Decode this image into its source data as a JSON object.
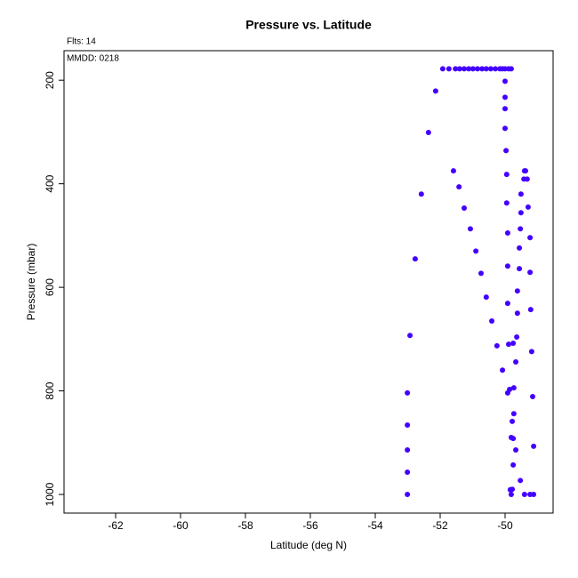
{
  "chart_data": {
    "type": "scatter",
    "title": "Pressure vs. Latitude",
    "note_flights": "Flts: 14",
    "note_date": "MMDD: 0218",
    "x_label": "Latitude (deg N)",
    "y_label": "Pressure (mbar)",
    "color": "#4400ff",
    "xlim": [
      -63.59,
      -48.52
    ],
    "ylim": [
      1036,
      143
    ],
    "xticks": [
      -62,
      -60,
      -58,
      -56,
      -54,
      -52,
      -50
    ],
    "yticks": [
      200,
      400,
      600,
      800,
      1000
    ],
    "x": [
      -51.92,
      -51.73,
      -51.53,
      -51.4,
      -51.26,
      -51.12,
      -50.99,
      -50.85,
      -50.71,
      -50.58,
      -50.44,
      -50.3,
      -50.16,
      -50.08,
      -50.0,
      -49.89,
      -49.81,
      -52.14,
      -52.36,
      -52.58,
      -52.77,
      -52.93,
      -53.01,
      -53.01,
      -53.01,
      -53.01,
      -53.01,
      -51.59,
      -51.42,
      -51.26,
      -51.07,
      -50.9,
      -50.74,
      -50.58,
      -50.41,
      -50.25,
      -50.08,
      -50.0,
      -50.0,
      -50.0,
      -50.0,
      -49.97,
      -49.95,
      -49.95,
      -49.92,
      -49.92,
      -49.92,
      -49.89,
      -49.92,
      -49.86,
      -49.4,
      -49.37,
      -49.42,
      -49.32,
      -49.51,
      -49.29,
      -49.51,
      -49.53,
      -49.23,
      -49.56,
      -49.23,
      -49.56,
      -49.62,
      -49.21,
      -49.62,
      -49.64,
      -49.75,
      -49.18,
      -49.67,
      -49.73,
      -49.15,
      -49.73,
      -49.78,
      -49.81,
      -49.75,
      -49.67,
      -49.12,
      -49.75,
      -49.53,
      -49.84,
      -49.81,
      -49.4,
      -49.23,
      -49.12,
      -49.78
    ],
    "values": [
      178,
      178,
      178,
      178,
      178,
      178,
      178,
      178,
      178,
      178,
      178,
      178,
      178,
      178,
      178,
      178,
      178,
      221,
      301,
      420,
      545,
      693,
      804,
      866,
      914,
      957,
      1000,
      375,
      406,
      447,
      487,
      530,
      573,
      619,
      665,
      713,
      760,
      202,
      233,
      255,
      293,
      336,
      382,
      437,
      495,
      559,
      631,
      710,
      804,
      797,
      375,
      375,
      391,
      391,
      420,
      445,
      456,
      487,
      504,
      524,
      571,
      564,
      607,
      643,
      650,
      696,
      708,
      724,
      744,
      794,
      811,
      844,
      859,
      890,
      892,
      914,
      907,
      943,
      973,
      991,
      1000,
      1000,
      1000,
      1000,
      990
    ]
  }
}
